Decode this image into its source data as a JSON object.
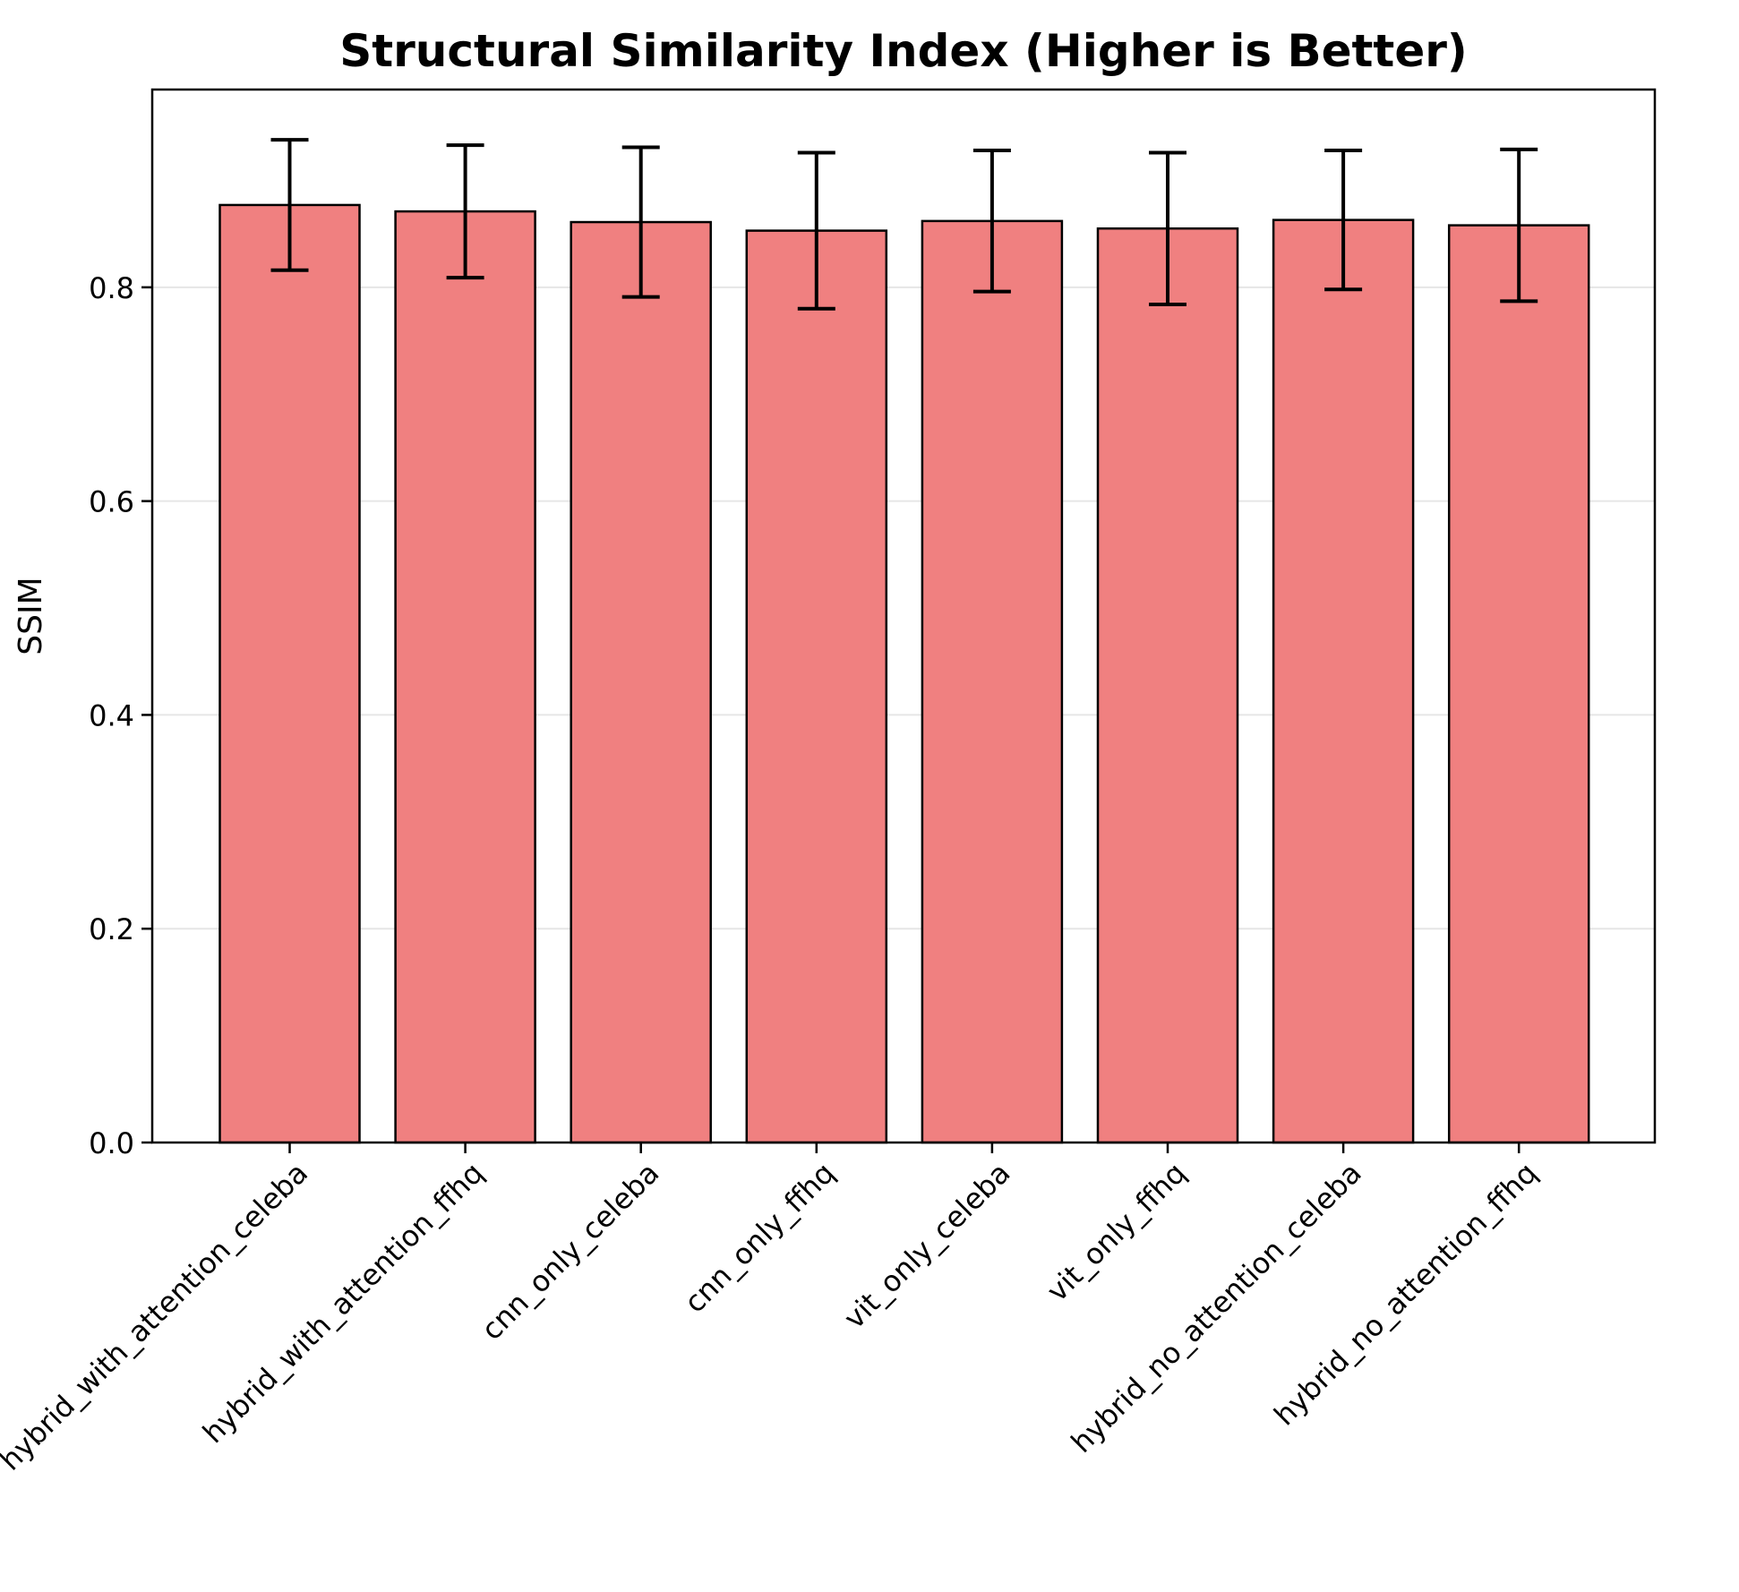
{
  "chart_data": {
    "type": "bar",
    "title": "Structural Similarity Index (Higher is Better)",
    "xlabel": "",
    "ylabel": "SSIM",
    "ylim": [
      0,
      0.985
    ],
    "yticks": [
      0.0,
      0.2,
      0.4,
      0.6,
      0.8
    ],
    "ytick_labels": [
      "0.0",
      "0.2",
      "0.4",
      "0.6",
      "0.8"
    ],
    "grid": "horizontal",
    "categories": [
      "hybrid_with_attention_celeba",
      "hybrid_with_attention_ffhq",
      "cnn_only_celeba",
      "cnn_only_ffhq",
      "vit_only_celeba",
      "vit_only_ffhq",
      "hybrid_no_attention_celeba",
      "hybrid_no_attention_ffhq"
    ],
    "values": [
      0.877,
      0.871,
      0.861,
      0.853,
      0.862,
      0.855,
      0.863,
      0.858
    ],
    "errors": [
      0.061,
      0.062,
      0.07,
      0.073,
      0.066,
      0.071,
      0.065,
      0.071
    ],
    "bar_color": "#f08080",
    "edge_color": "#000000",
    "grid_color": "#e6e6e6"
  }
}
